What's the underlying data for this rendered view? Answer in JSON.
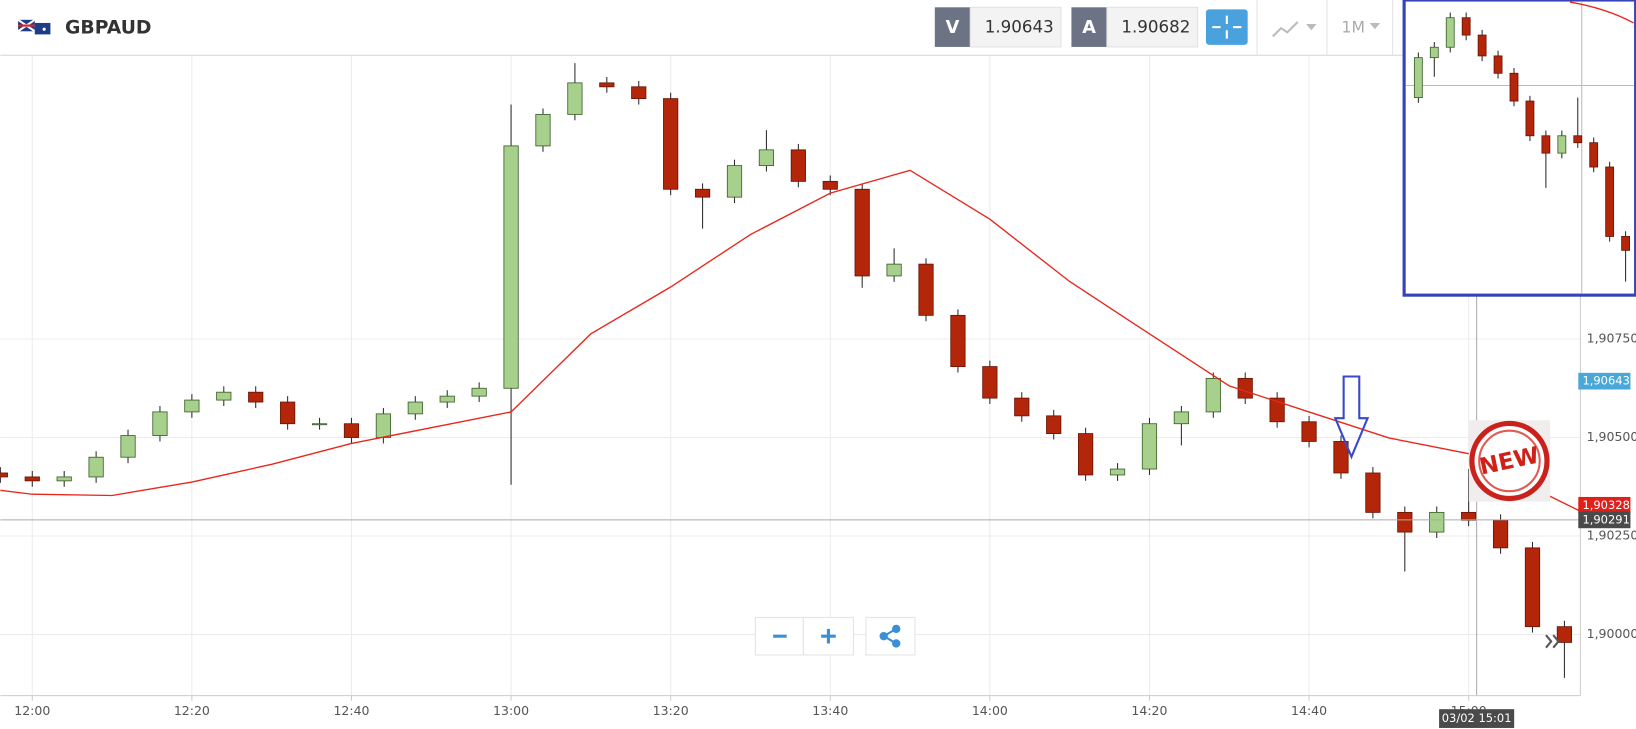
{
  "header": {
    "symbol": "GBPAUD",
    "sell_label": "V",
    "sell": 1.90643,
    "buy_label": "A",
    "buy": 1.90682,
    "timeframe": "1M"
  },
  "chart_data": {
    "type": "candlestick",
    "x": [
      "11:56",
      "12:00",
      "12:04",
      "12:08",
      "12:12",
      "12:16",
      "12:20",
      "12:24",
      "12:28",
      "12:32",
      "12:36",
      "12:40",
      "12:44",
      "12:48",
      "12:52",
      "12:56",
      "13:00",
      "13:04",
      "13:08",
      "13:12",
      "13:16",
      "13:20",
      "13:24",
      "13:28",
      "13:32",
      "13:36",
      "13:40",
      "13:44",
      "13:48",
      "13:52",
      "13:56",
      "14:00",
      "14:04",
      "14:08",
      "14:12",
      "14:16",
      "14:20",
      "14:24",
      "14:28",
      "14:32",
      "14:36",
      "14:40",
      "14:44",
      "14:48",
      "14:52",
      "14:56",
      "15:00",
      "15:04",
      "15:08",
      "15:12"
    ],
    "open": [
      1.9041,
      1.904,
      1.9039,
      1.904,
      1.9045,
      1.90505,
      1.90565,
      1.90595,
      1.90615,
      1.9059,
      1.90535,
      1.90535,
      1.905,
      1.9056,
      1.9059,
      1.90605,
      1.90625,
      1.9124,
      1.9132,
      1.914,
      1.9139,
      1.9136,
      1.9113,
      1.9111,
      1.9119,
      1.9123,
      1.9115,
      1.9113,
      1.9091,
      1.9094,
      1.9081,
      1.9068,
      1.906,
      1.90555,
      1.9051,
      1.90405,
      1.9042,
      1.90535,
      1.90565,
      1.9065,
      1.906,
      1.9054,
      1.9049,
      1.9041,
      1.9031,
      1.9026,
      1.9031,
      1.9029,
      1.9022,
      1.9002
    ],
    "high": [
      1.90425,
      1.90415,
      1.90415,
      1.90465,
      1.9052,
      1.9058,
      1.9061,
      1.9063,
      1.9063,
      1.90605,
      1.9055,
      1.9055,
      1.90575,
      1.90605,
      1.9062,
      1.9064,
      1.91345,
      1.91335,
      1.9145,
      1.91415,
      1.91405,
      1.91375,
      1.91145,
      1.91205,
      1.9128,
      1.91245,
      1.91165,
      1.91145,
      1.9098,
      1.90955,
      1.90825,
      1.90695,
      1.90615,
      1.9057,
      1.90525,
      1.90435,
      1.9055,
      1.9058,
      1.90665,
      1.90665,
      1.90615,
      1.90555,
      1.90505,
      1.90425,
      1.90325,
      1.90325,
      1.9042,
      1.90305,
      1.90235,
      1.90035
    ],
    "low": [
      1.90385,
      1.90375,
      1.90375,
      1.90385,
      1.90435,
      1.9049,
      1.9055,
      1.9058,
      1.90575,
      1.9052,
      1.9052,
      1.90485,
      1.90485,
      1.90545,
      1.90575,
      1.9059,
      1.9038,
      1.91225,
      1.91305,
      1.91375,
      1.91345,
      1.91115,
      1.9103,
      1.91095,
      1.91175,
      1.91135,
      1.91115,
      1.9088,
      1.90895,
      1.90795,
      1.90665,
      1.90585,
      1.9054,
      1.90495,
      1.9039,
      1.9039,
      1.90405,
      1.9048,
      1.9055,
      1.90585,
      1.90525,
      1.90475,
      1.90395,
      1.90295,
      1.9016,
      1.90245,
      1.90275,
      1.90205,
      1.90005,
      1.8989
    ],
    "close": [
      1.904,
      1.9039,
      1.904,
      1.9045,
      1.90505,
      1.90565,
      1.90595,
      1.90615,
      1.9059,
      1.90535,
      1.90535,
      1.905,
      1.9056,
      1.9059,
      1.90605,
      1.90625,
      1.9124,
      1.9132,
      1.914,
      1.9139,
      1.9136,
      1.9113,
      1.9111,
      1.9119,
      1.9123,
      1.9115,
      1.9113,
      1.9091,
      1.9094,
      1.9081,
      1.9068,
      1.906,
      1.90555,
      1.9051,
      1.90405,
      1.9042,
      1.90535,
      1.90565,
      1.9065,
      1.906,
      1.9054,
      1.9049,
      1.9041,
      1.9031,
      1.9026,
      1.9031,
      1.9029,
      1.9022,
      1.9002,
      1.8998
    ],
    "up_color": "#a8d08d",
    "down_color": "#b3260a",
    "overlay": {
      "color": "#e8271c",
      "x": [
        "11:56",
        "12:00",
        "12:10",
        "12:20",
        "12:30",
        "12:40",
        "12:50",
        "13:00",
        "13:10",
        "13:20",
        "13:30",
        "13:40",
        "13:50",
        "14:00",
        "14:10",
        "14:20",
        "14:30",
        "14:40",
        "14:50",
        "15:00",
        "15:10",
        "15:14"
      ],
      "values": [
        1.90366,
        1.90356,
        1.90353,
        1.90387,
        1.90432,
        1.90485,
        1.90525,
        1.90565,
        1.90763,
        1.90882,
        1.91015,
        1.9112,
        1.91178,
        1.91054,
        1.90896,
        1.90763,
        1.90631,
        1.90565,
        1.90499,
        1.90459,
        1.90353,
        1.90313
      ]
    },
    "xlim": [
      "11:56",
      "15:14"
    ],
    "xticks": [
      "12:00",
      "12:20",
      "12:40",
      "13:00",
      "13:20",
      "13:40",
      "14:00",
      "14:20",
      "14:40",
      "15:00"
    ],
    "ylim": [
      1.89845,
      1.9147
    ],
    "yticks": [
      {
        "value": 1.9075,
        "label": "1,90750"
      },
      {
        "value": 1.905,
        "label": "1,90500"
      },
      {
        "value": 1.9025,
        "label": "1,90250"
      },
      {
        "value": 1.9,
        "label": "1,90000"
      }
    ],
    "grid": true,
    "price_tags": [
      {
        "value": 1.90643,
        "label": "1,90643",
        "color": "#4aa8d8"
      },
      {
        "value": 1.90328,
        "label": "1,90328",
        "color": "#e0201b"
      },
      {
        "value": 1.90291,
        "label": "1,90291",
        "color": "#4a4a4a"
      }
    ],
    "crosshair": {
      "x": "15:01",
      "x_label": "03/02 15:01"
    },
    "badge": "NEW"
  }
}
